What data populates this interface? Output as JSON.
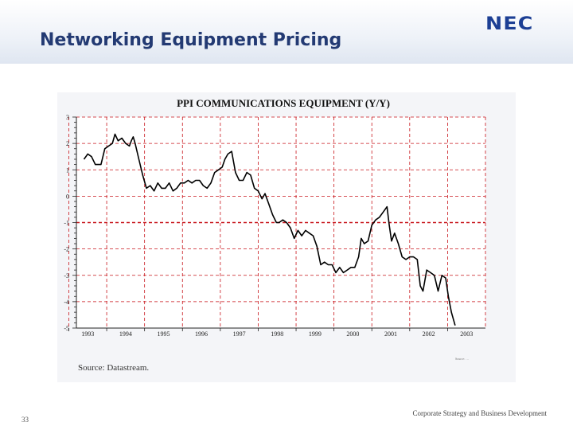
{
  "slide": {
    "title": "Networking Equipment Pricing",
    "logo_text": "NEC",
    "page_number": "33",
    "footer": "Corporate Strategy and Business Development"
  },
  "colors": {
    "title": "#233a73",
    "logo": "#1c3f94",
    "grid": "#c8151b",
    "series": "#000000"
  },
  "chart_data": {
    "type": "line",
    "title": "PPI COMMUNICATIONS EQUIPMENT (Y/Y)",
    "xlabel": "",
    "ylabel": "",
    "source": "Source: Datastream.",
    "credit": "Source: …",
    "grid": true,
    "legend": "none",
    "xlim": [
      1992.7,
      2003.5
    ],
    "ylim": [
      -5,
      3
    ],
    "x_ticks": [
      1993,
      1994,
      1995,
      1996,
      1997,
      1998,
      1999,
      2000,
      2001,
      2002,
      2003
    ],
    "x_tick_labels": [
      "1993",
      "1994",
      "1995",
      "1996",
      "1997",
      "1998",
      "1999",
      "2000",
      "2001",
      "2002",
      "2003"
    ],
    "y_ticks": [
      -5,
      -4,
      -3,
      -2,
      -1,
      0,
      1,
      2,
      3
    ],
    "y_tick_labels": [
      "-5",
      "-4",
      "-3",
      "-2",
      "-1",
      "0",
      "1",
      "2",
      "3"
    ],
    "series": [
      {
        "name": "",
        "x": [
          1992.9,
          1993.0,
          1993.1,
          1993.2,
          1993.35,
          1993.45,
          1993.55,
          1993.65,
          1993.72,
          1993.8,
          1993.9,
          1994.0,
          1994.1,
          1994.15,
          1994.2,
          1994.25,
          1994.35,
          1994.45,
          1994.55,
          1994.65,
          1994.75,
          1994.85,
          1994.95,
          1995.05,
          1995.15,
          1995.25,
          1995.35,
          1995.45,
          1995.55,
          1995.65,
          1995.75,
          1995.85,
          1995.95,
          1996.05,
          1996.15,
          1996.25,
          1996.35,
          1996.45,
          1996.55,
          1996.62,
          1996.7,
          1996.8,
          1996.9,
          1997.0,
          1997.1,
          1997.2,
          1997.3,
          1997.4,
          1997.5,
          1997.6,
          1997.68,
          1997.78,
          1997.88,
          1997.98,
          1998.05,
          1998.15,
          1998.25,
          1998.35,
          1998.45,
          1998.55,
          1998.65,
          1998.75,
          1998.85,
          1998.95,
          1999.05,
          1999.15,
          1999.25,
          1999.35,
          1999.45,
          1999.55,
          1999.65,
          1999.75,
          1999.85,
          1999.95,
          2000.05,
          2000.15,
          2000.22,
          2000.3,
          2000.4,
          2000.5,
          2000.6,
          2000.7,
          2000.8,
          2000.9,
          2000.96,
          2001.02,
          2001.1,
          2001.2,
          2001.3,
          2001.4,
          2001.5,
          2001.6,
          2001.7,
          2001.78,
          2001.85,
          2001.95,
          2002.05,
          2002.15,
          2002.25,
          2002.35,
          2002.45,
          2002.52,
          2002.6,
          2002.7
        ],
        "y": [
          1.4,
          1.6,
          1.5,
          1.2,
          1.2,
          1.8,
          1.9,
          2.0,
          2.35,
          2.1,
          2.2,
          2.0,
          1.9,
          2.1,
          2.25,
          2.0,
          1.4,
          0.8,
          0.3,
          0.4,
          0.2,
          0.5,
          0.3,
          0.3,
          0.5,
          0.2,
          0.3,
          0.5,
          0.5,
          0.6,
          0.5,
          0.6,
          0.6,
          0.4,
          0.3,
          0.5,
          0.9,
          1.0,
          1.1,
          1.4,
          1.6,
          1.7,
          0.9,
          0.6,
          0.6,
          0.9,
          0.8,
          0.3,
          0.2,
          -0.1,
          0.1,
          -0.3,
          -0.7,
          -1.0,
          -1.0,
          -0.9,
          -1.0,
          -1.2,
          -1.6,
          -1.3,
          -1.5,
          -1.3,
          -1.4,
          -1.5,
          -1.9,
          -2.6,
          -2.5,
          -2.6,
          -2.6,
          -2.9,
          -2.7,
          -2.9,
          -2.8,
          -2.7,
          -2.7,
          -2.3,
          -1.6,
          -1.8,
          -1.7,
          -1.1,
          -0.9,
          -0.8,
          -0.6,
          -0.4,
          -1.1,
          -1.7,
          -1.4,
          -1.8,
          -2.3,
          -2.4,
          -2.3,
          -2.3,
          -2.4,
          -3.4,
          -3.6,
          -2.8,
          -2.9,
          -3.0,
          -3.6,
          -3.0,
          -3.1,
          -3.8,
          -4.4,
          -4.9
        ]
      }
    ]
  }
}
